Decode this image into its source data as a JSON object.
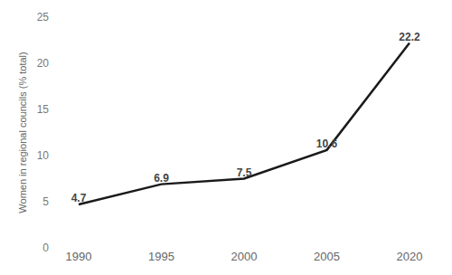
{
  "chart_data": {
    "type": "line",
    "y_label": "Women in regional councils (% total)",
    "categories": [
      "1990",
      "1995",
      "2000",
      "2005",
      "2020"
    ],
    "values": [
      4.7,
      6.9,
      7.5,
      10.6,
      22.2
    ],
    "color": "#1a1a1a",
    "ylim": [
      0,
      25
    ],
    "yticks": [
      0,
      5,
      10,
      15,
      20,
      25
    ],
    "grid": false,
    "data_labels": true
  }
}
